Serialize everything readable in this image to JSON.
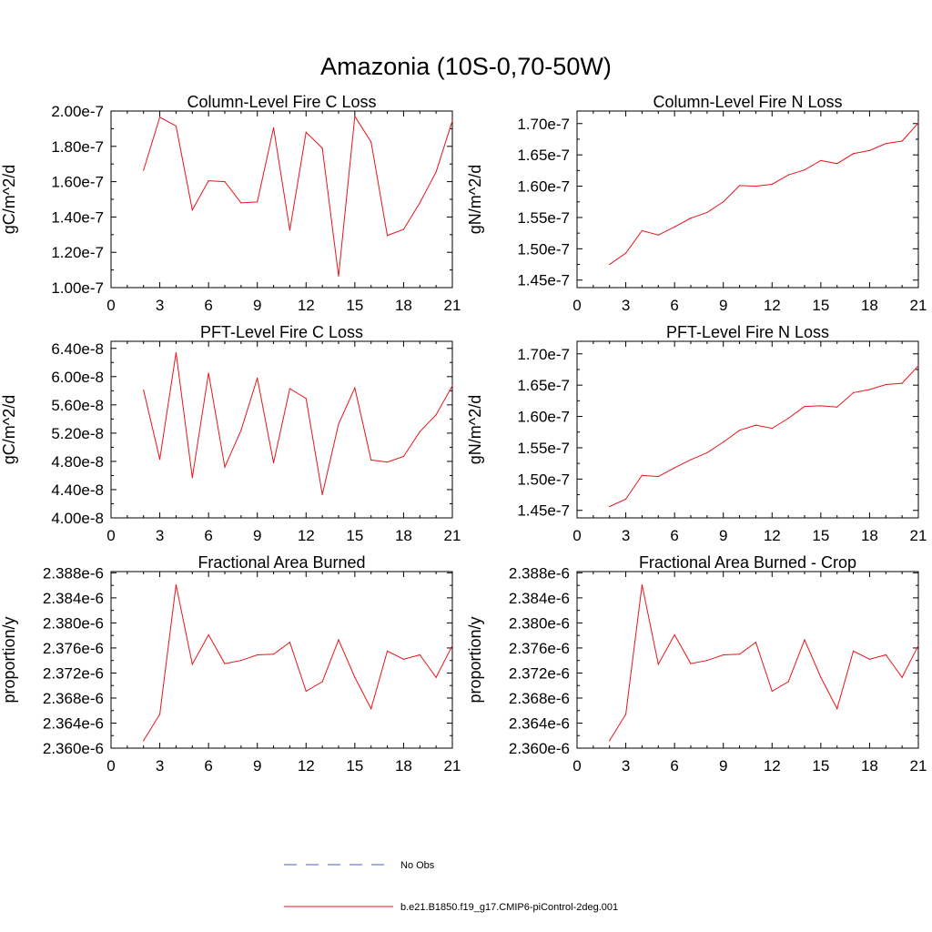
{
  "title": "Amazonia (10S-0,70-50W)",
  "legend": {
    "no_obs_label": "No Obs",
    "no_obs_color": "#4a5bd6",
    "model_label": "b.e21.B1850.f19_g17.CMIP6-piControl-2deg.001",
    "model_color": "#e8151b"
  },
  "chart_data": [
    {
      "type": "line",
      "title": "Column-Level Fire C Loss",
      "ylabel": "gC/m^2/d",
      "xlim": [
        0,
        21
      ],
      "x_ticks": [
        "0",
        "3",
        "6",
        "9",
        "12",
        "15",
        "18",
        "21"
      ],
      "ylim": [
        1e-07,
        2e-07
      ],
      "y_ticks": [
        1e-07,
        1.2e-07,
        1.4e-07,
        1.6e-07,
        1.8e-07,
        2e-07
      ],
      "y_tick_labels": [
        "1.00e-7",
        "1.20e-7",
        "1.40e-7",
        "1.60e-7",
        "1.80e-7",
        "2.00e-7"
      ],
      "series": [
        {
          "name": "b.e21.B1850.f19_g17.CMIP6-piControl-2deg.001",
          "x": [
            2,
            3,
            4,
            5,
            6,
            7,
            8,
            9,
            10,
            11,
            12,
            13,
            14,
            15,
            16,
            17,
            18,
            19,
            20,
            21
          ],
          "values": [
            1.665e-07,
            1.965e-07,
            1.915e-07,
            1.44e-07,
            1.605e-07,
            1.6e-07,
            1.48e-07,
            1.485e-07,
            1.905e-07,
            1.325e-07,
            1.88e-07,
            1.79e-07,
            1.065e-07,
            1.97e-07,
            1.825e-07,
            1.295e-07,
            1.33e-07,
            1.48e-07,
            1.655e-07,
            1.945e-07
          ]
        }
      ]
    },
    {
      "type": "line",
      "title": "Column-Level Fire N Loss",
      "ylabel": "gN/m^2/d",
      "xlim": [
        0,
        21
      ],
      "x_ticks": [
        "0",
        "3",
        "6",
        "9",
        "12",
        "15",
        "18",
        "21"
      ],
      "ylim": [
        1.438e-07,
        1.72e-07
      ],
      "y_ticks": [
        1.45e-07,
        1.5e-07,
        1.55e-07,
        1.6e-07,
        1.65e-07,
        1.7e-07
      ],
      "y_tick_labels": [
        "1.45e-7",
        "1.50e-7",
        "1.55e-7",
        "1.60e-7",
        "1.65e-7",
        "1.70e-7"
      ],
      "series": [
        {
          "name": "b.e21.B1850.f19_g17.CMIP6-piControl-2deg.001",
          "x": [
            2,
            3,
            4,
            5,
            6,
            7,
            8,
            9,
            10,
            11,
            12,
            13,
            14,
            15,
            16,
            17,
            18,
            19,
            20,
            21
          ],
          "values": [
            1.475e-07,
            1.493e-07,
            1.529e-07,
            1.522e-07,
            1.535e-07,
            1.549e-07,
            1.558e-07,
            1.575e-07,
            1.601e-07,
            1.6e-07,
            1.603e-07,
            1.618e-07,
            1.626e-07,
            1.641e-07,
            1.636e-07,
            1.652e-07,
            1.657e-07,
            1.668e-07,
            1.672e-07,
            1.701e-07
          ]
        }
      ]
    },
    {
      "type": "line",
      "title": "PFT-Level Fire C Loss",
      "ylabel": "gC/m^2/d",
      "xlim": [
        0,
        21
      ],
      "x_ticks": [
        "0",
        "3",
        "6",
        "9",
        "12",
        "15",
        "18",
        "21"
      ],
      "ylim": [
        4e-08,
        6.5e-08
      ],
      "y_ticks": [
        4e-08,
        4.4e-08,
        4.8e-08,
        5.2e-08,
        5.6e-08,
        6e-08,
        6.4e-08
      ],
      "y_tick_labels": [
        "4.00e-8",
        "4.40e-8",
        "4.80e-8",
        "5.20e-8",
        "5.60e-8",
        "6.00e-8",
        "6.40e-8"
      ],
      "series": [
        {
          "name": "b.e21.B1850.f19_g17.CMIP6-piControl-2deg.001",
          "x": [
            2,
            3,
            4,
            5,
            6,
            7,
            8,
            9,
            10,
            11,
            12,
            13,
            14,
            15,
            16,
            17,
            18,
            19,
            20,
            21
          ],
          "values": [
            5.81e-08,
            4.83e-08,
            6.34e-08,
            4.57e-08,
            6.05e-08,
            4.72e-08,
            5.24e-08,
            5.98e-08,
            4.78e-08,
            5.83e-08,
            5.69e-08,
            4.33e-08,
            5.33e-08,
            5.84e-08,
            4.82e-08,
            4.79e-08,
            4.87e-08,
            5.22e-08,
            5.46e-08,
            5.87e-08
          ]
        }
      ]
    },
    {
      "type": "line",
      "title": "PFT-Level Fire N Loss",
      "ylabel": "gN/m^2/d",
      "xlim": [
        0,
        21
      ],
      "x_ticks": [
        "0",
        "3",
        "6",
        "9",
        "12",
        "15",
        "18",
        "21"
      ],
      "ylim": [
        1.438e-07,
        1.72e-07
      ],
      "y_ticks": [
        1.45e-07,
        1.5e-07,
        1.55e-07,
        1.6e-07,
        1.65e-07,
        1.7e-07
      ],
      "y_tick_labels": [
        "1.45e-7",
        "1.50e-7",
        "1.55e-7",
        "1.60e-7",
        "1.65e-7",
        "1.70e-7"
      ],
      "series": [
        {
          "name": "b.e21.B1850.f19_g17.CMIP6-piControl-2deg.001",
          "x": [
            2,
            3,
            4,
            5,
            6,
            7,
            8,
            9,
            10,
            11,
            12,
            13,
            14,
            15,
            16,
            17,
            18,
            19,
            20,
            21
          ],
          "values": [
            1.456e-07,
            1.468e-07,
            1.506e-07,
            1.504e-07,
            1.518e-07,
            1.531e-07,
            1.542e-07,
            1.559e-07,
            1.578e-07,
            1.586e-07,
            1.581e-07,
            1.597e-07,
            1.616e-07,
            1.617e-07,
            1.615e-07,
            1.638e-07,
            1.643e-07,
            1.651e-07,
            1.653e-07,
            1.681e-07
          ]
        }
      ]
    },
    {
      "type": "line",
      "title": "Fractional Area Burned",
      "ylabel": "proportion/y",
      "xlim": [
        0,
        21
      ],
      "x_ticks": [
        "0",
        "3",
        "6",
        "9",
        "12",
        "15",
        "18",
        "21"
      ],
      "ylim": [
        2.36e-06,
        2.3882e-06
      ],
      "y_ticks": [
        2.36e-06,
        2.364e-06,
        2.368e-06,
        2.372e-06,
        2.376e-06,
        2.38e-06,
        2.384e-06,
        2.388e-06
      ],
      "y_tick_labels": [
        "2.360e-6",
        "2.364e-6",
        "2.368e-6",
        "2.372e-6",
        "2.376e-6",
        "2.380e-6",
        "2.384e-6",
        "2.388e-6"
      ],
      "series": [
        {
          "name": "b.e21.B1850.f19_g17.CMIP6-piControl-2deg.001",
          "x": [
            2,
            3,
            4,
            5,
            6,
            7,
            8,
            9,
            10,
            11,
            12,
            13,
            14,
            15,
            16,
            17,
            18,
            19,
            20,
            21
          ],
          "values": [
            2.3612e-06,
            2.3654e-06,
            2.3861e-06,
            2.3734e-06,
            2.3781e-06,
            2.3735e-06,
            2.374e-06,
            2.3749e-06,
            2.375e-06,
            2.3769e-06,
            2.3691e-06,
            2.3706e-06,
            2.3773e-06,
            2.3713e-06,
            2.3663e-06,
            2.3755e-06,
            2.3742e-06,
            2.3749e-06,
            2.3713e-06,
            2.3764e-06
          ]
        }
      ]
    },
    {
      "type": "line",
      "title": "Fractional Area Burned - Crop",
      "ylabel": "proportion/y",
      "xlim": [
        0,
        21
      ],
      "x_ticks": [
        "0",
        "3",
        "6",
        "9",
        "12",
        "15",
        "18",
        "21"
      ],
      "ylim": [
        2.36e-06,
        2.3882e-06
      ],
      "y_ticks": [
        2.36e-06,
        2.364e-06,
        2.368e-06,
        2.372e-06,
        2.376e-06,
        2.38e-06,
        2.384e-06,
        2.388e-06
      ],
      "y_tick_labels": [
        "2.360e-6",
        "2.364e-6",
        "2.368e-6",
        "2.372e-6",
        "2.376e-6",
        "2.380e-6",
        "2.384e-6",
        "2.388e-6"
      ],
      "series": [
        {
          "name": "b.e21.B1850.f19_g17.CMIP6-piControl-2deg.001",
          "x": [
            2,
            3,
            4,
            5,
            6,
            7,
            8,
            9,
            10,
            11,
            12,
            13,
            14,
            15,
            16,
            17,
            18,
            19,
            20,
            21
          ],
          "values": [
            2.3612e-06,
            2.3654e-06,
            2.3861e-06,
            2.3734e-06,
            2.3781e-06,
            2.3735e-06,
            2.374e-06,
            2.3749e-06,
            2.375e-06,
            2.3769e-06,
            2.3691e-06,
            2.3706e-06,
            2.3773e-06,
            2.3713e-06,
            2.3663e-06,
            2.3755e-06,
            2.3742e-06,
            2.3749e-06,
            2.3713e-06,
            2.3764e-06
          ]
        }
      ]
    }
  ]
}
